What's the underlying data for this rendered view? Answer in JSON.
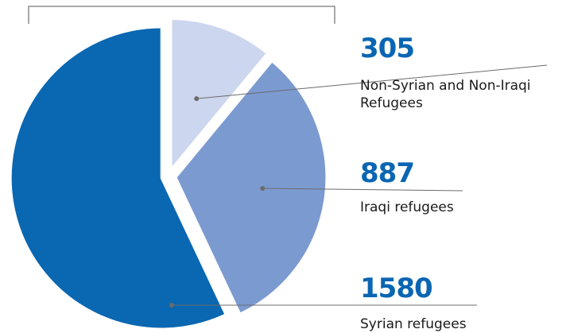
{
  "chart_data": {
    "type": "pie",
    "slices": [
      {
        "value": 305,
        "value_label": "305",
        "label_lines": [
          "Non-Syrian and Non-Iraqi",
          "Refugees"
        ],
        "color": "#ccd6ee"
      },
      {
        "value": 887,
        "value_label": "887",
        "label_lines": [
          "Iraqi refugees"
        ],
        "color": "#7b9ad0"
      },
      {
        "value": 1580,
        "value_label": "1580",
        "label_lines": [
          "Syrian refugees"
        ],
        "color": "#0a67b1"
      }
    ],
    "title": "",
    "legend": "right",
    "colors": {
      "value_text": "#0a66b3",
      "leader_line": "#6b6b6b",
      "frame": "#555555"
    }
  }
}
